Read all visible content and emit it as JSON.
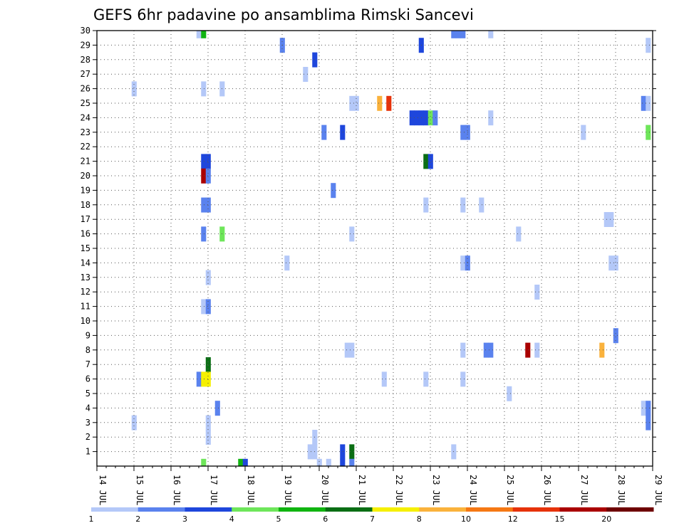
{
  "chart_data": {
    "type": "heatmap",
    "title": "GEFS 6hr padavine po ansamblima Rimski Sancevi",
    "xlabel": "",
    "ylabel": "",
    "x_ticks": [
      "14 JUL",
      "15 JUL",
      "16 JUL",
      "17 JUL",
      "18 JUL",
      "19 JUL",
      "20 JUL",
      "21 JUL",
      "22 JUL",
      "23 JUL",
      "24 JUL",
      "25 JUL",
      "26 JUL",
      "27 JUL",
      "28 JUL",
      "29 JUL"
    ],
    "y_ticks": [
      1,
      2,
      3,
      4,
      5,
      6,
      7,
      8,
      9,
      10,
      11,
      12,
      13,
      14,
      15,
      16,
      17,
      18,
      19,
      20,
      21,
      22,
      23,
      24,
      25,
      26,
      27,
      28,
      29,
      30
    ],
    "xlim_days": [
      0,
      15
    ],
    "ylim": [
      0,
      30
    ],
    "grid": true,
    "colorbar": {
      "ticks": [
        "1",
        "2",
        "3",
        "4",
        "5",
        "6",
        "7",
        "8",
        "10",
        "12",
        "15",
        "20"
      ],
      "colors": [
        "#b4c8f8",
        "#5a82ee",
        "#1e46dc",
        "#6ee65a",
        "#10b410",
        "#0a6e14",
        "#f5f000",
        "#fab23c",
        "#f57814",
        "#e6320a",
        "#aa0000",
        "#6e0000"
      ]
    },
    "cells": [
      [
        2.75,
        30,
        1
      ],
      [
        2.875,
        30,
        5
      ],
      [
        9.625,
        30,
        2
      ],
      [
        9.75,
        30,
        2
      ],
      [
        9.875,
        30,
        2
      ],
      [
        10.625,
        30,
        1
      ],
      [
        5.0,
        29,
        2
      ],
      [
        8.75,
        29,
        3
      ],
      [
        14.875,
        29,
        1
      ],
      [
        5.875,
        28,
        3
      ],
      [
        5.625,
        27,
        1
      ],
      [
        1.0,
        26,
        1
      ],
      [
        2.875,
        26,
        1
      ],
      [
        3.375,
        26,
        1
      ],
      [
        6.875,
        25,
        1
      ],
      [
        7.0,
        25,
        1
      ],
      [
        7.625,
        25,
        8
      ],
      [
        7.875,
        25,
        10
      ],
      [
        14.75,
        25,
        2
      ],
      [
        14.875,
        25,
        1
      ],
      [
        8.5,
        24,
        3
      ],
      [
        8.625,
        24,
        3
      ],
      [
        8.75,
        24,
        3
      ],
      [
        8.875,
        24,
        3
      ],
      [
        9.0,
        24,
        4
      ],
      [
        9.125,
        24,
        2
      ],
      [
        10.625,
        24,
        1
      ],
      [
        6.125,
        23,
        2
      ],
      [
        6.625,
        23,
        3
      ],
      [
        9.875,
        23,
        2
      ],
      [
        10.0,
        23,
        2
      ],
      [
        13.125,
        23,
        1
      ],
      [
        14.875,
        23,
        4
      ],
      [
        2.875,
        21,
        3
      ],
      [
        3.0,
        21,
        3
      ],
      [
        8.875,
        21,
        6
      ],
      [
        9.0,
        21,
        3
      ],
      [
        2.875,
        20,
        11
      ],
      [
        3.0,
        20,
        2
      ],
      [
        6.375,
        19,
        2
      ],
      [
        2.875,
        18,
        2
      ],
      [
        3.0,
        18,
        2
      ],
      [
        8.875,
        18,
        1
      ],
      [
        9.875,
        18,
        1
      ],
      [
        10.375,
        18,
        1
      ],
      [
        13.75,
        17,
        1
      ],
      [
        13.875,
        17,
        1
      ],
      [
        2.875,
        16,
        2
      ],
      [
        3.375,
        16,
        4
      ],
      [
        6.875,
        16,
        1
      ],
      [
        11.375,
        16,
        1
      ],
      [
        5.125,
        14,
        1
      ],
      [
        9.875,
        14,
        1
      ],
      [
        10.0,
        14,
        2
      ],
      [
        13.875,
        14,
        1
      ],
      [
        14.0,
        14,
        1
      ],
      [
        3.0,
        13,
        1
      ],
      [
        11.875,
        12,
        1
      ],
      [
        2.875,
        11,
        1
      ],
      [
        3.0,
        11,
        2
      ],
      [
        14.0,
        9,
        2
      ],
      [
        6.75,
        8,
        1
      ],
      [
        6.875,
        8,
        1
      ],
      [
        9.875,
        8,
        1
      ],
      [
        10.5,
        8,
        2
      ],
      [
        10.625,
        8,
        2
      ],
      [
        11.625,
        8,
        11
      ],
      [
        11.875,
        8,
        1
      ],
      [
        13.625,
        8,
        8
      ],
      [
        3.0,
        7,
        6
      ],
      [
        7.75,
        6,
        1
      ],
      [
        2.75,
        6,
        2
      ],
      [
        2.875,
        6,
        7
      ],
      [
        3.0,
        6,
        7
      ],
      [
        8.875,
        6,
        1
      ],
      [
        9.875,
        6,
        1
      ],
      [
        11.125,
        5,
        1
      ],
      [
        3.25,
        4,
        2
      ],
      [
        14.75,
        4,
        1
      ],
      [
        14.875,
        4,
        2
      ],
      [
        1.0,
        3,
        1
      ],
      [
        3.0,
        3,
        1
      ],
      [
        14.875,
        3,
        2
      ],
      [
        3.0,
        2,
        1
      ],
      [
        5.875,
        2,
        1
      ],
      [
        5.75,
        1,
        1
      ],
      [
        5.875,
        1,
        1
      ],
      [
        6.625,
        1,
        3
      ],
      [
        6.875,
        1,
        6
      ],
      [
        9.625,
        1,
        1
      ],
      [
        2.875,
        0,
        4
      ],
      [
        3.875,
        0,
        5
      ],
      [
        4.0,
        0,
        3
      ],
      [
        6.0,
        0,
        1
      ],
      [
        6.25,
        0,
        1
      ],
      [
        6.625,
        0,
        3
      ],
      [
        6.875,
        0,
        2
      ]
    ]
  }
}
